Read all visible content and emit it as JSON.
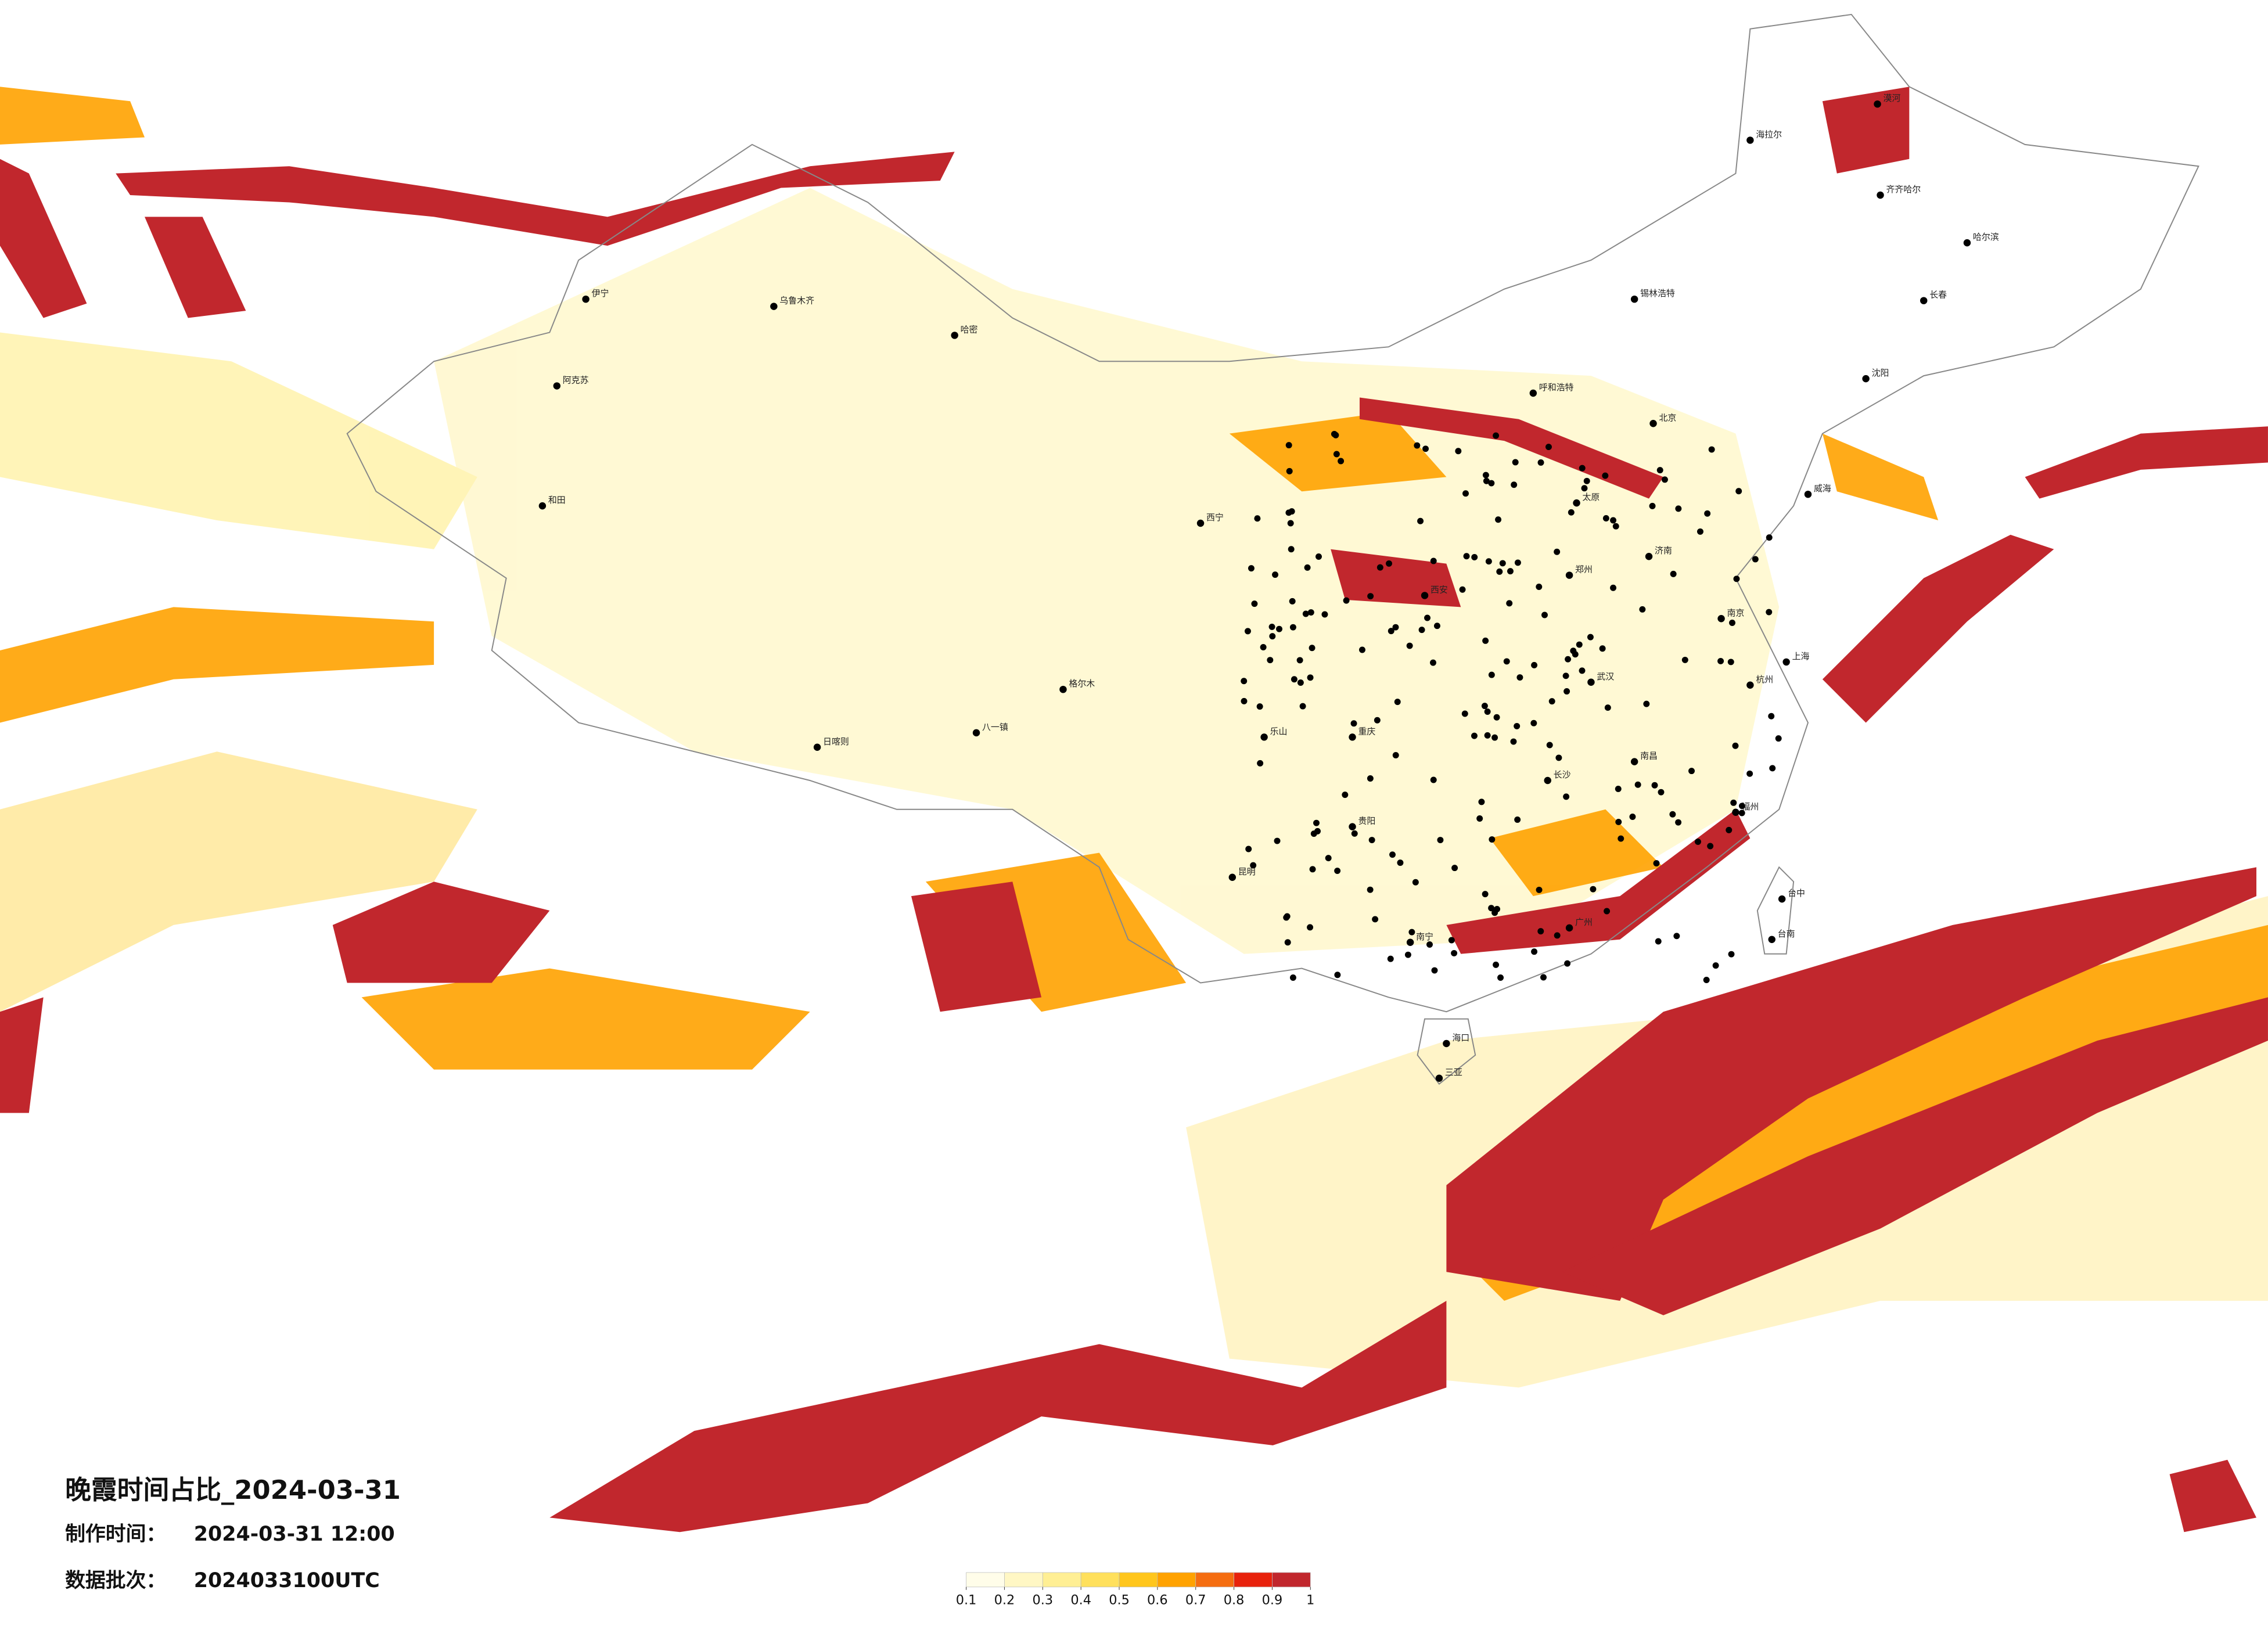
{
  "title": "晚霞时间占比_2024-03-31",
  "meta": {
    "made_label": "制作时间：",
    "made_time": "2024-03-31 12:00",
    "batch_label": "数据批次：",
    "batch": "2024033100UTC"
  },
  "legend": {
    "ticks": [
      0.1,
      0.2,
      0.3,
      0.4,
      0.5,
      0.6,
      0.7,
      0.8,
      0.9,
      1
    ],
    "colors": [
      "#fffde9",
      "#fff7c4",
      "#ffef94",
      "#ffe05c",
      "#ffc61c",
      "#ffa200",
      "#f56d10",
      "#e8220c",
      "#c1272d"
    ]
  },
  "cities": [
    {
      "name": "漠河"
    },
    {
      "name": "海拉尔"
    },
    {
      "name": "齐齐哈尔"
    },
    {
      "name": "哈尔滨"
    },
    {
      "name": "长春"
    },
    {
      "name": "沈阳"
    },
    {
      "name": "威海"
    },
    {
      "name": "北京"
    },
    {
      "name": "呼和浩特"
    },
    {
      "name": "太原"
    },
    {
      "name": "西安"
    },
    {
      "name": "郑州"
    },
    {
      "name": "武汉"
    },
    {
      "name": "南京"
    },
    {
      "name": "上海"
    },
    {
      "name": "杭州"
    },
    {
      "name": "福州"
    },
    {
      "name": "广州"
    },
    {
      "name": "南宁"
    },
    {
      "name": "昆明"
    },
    {
      "name": "贵阳"
    },
    {
      "name": "重庆"
    },
    {
      "name": "乐山"
    },
    {
      "name": "西宁"
    },
    {
      "name": "乌鲁木齐"
    },
    {
      "name": "八一镇"
    },
    {
      "name": "日喀则"
    },
    {
      "name": "和田"
    },
    {
      "name": "伊宁"
    },
    {
      "name": "阿克苏"
    },
    {
      "name": "哈密"
    },
    {
      "name": "格尔木"
    },
    {
      "name": "台中"
    },
    {
      "name": "台南"
    },
    {
      "name": "海口"
    },
    {
      "name": "三亚"
    },
    {
      "name": "锡林浩特"
    },
    {
      "name": "长沙"
    },
    {
      "name": "南昌"
    },
    {
      "name": "济南"
    }
  ]
}
